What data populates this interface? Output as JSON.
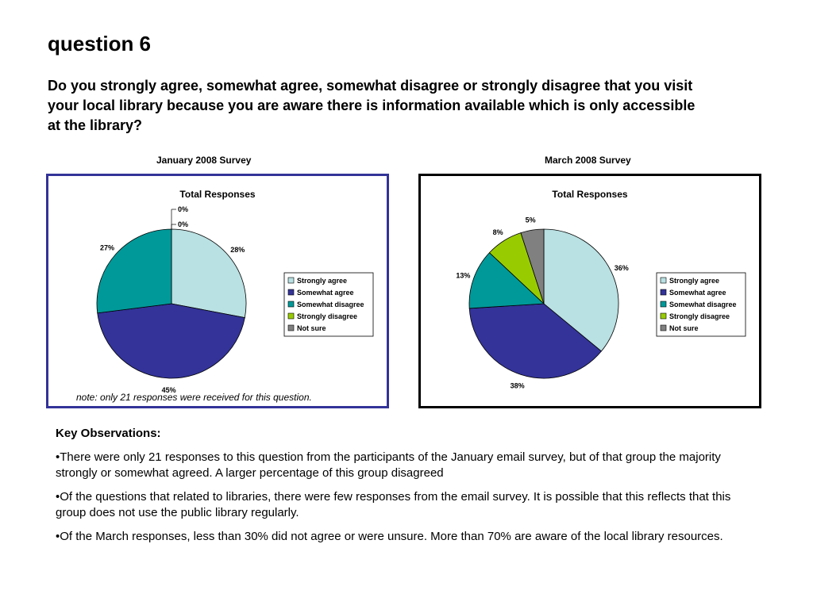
{
  "title": "question 6",
  "question": "Do you strongly agree, somewhat agree, somewhat disagree or strongly disagree that you visit your local library because you are aware there is information available which is only accessible at the library?",
  "note": "note: only 21 responses were received for this question.",
  "observations": {
    "heading": "Key Observations:",
    "items": [
      "•There were only 21 responses to this question from the participants of the January email survey, but of that group the majority strongly or somewhat agreed. A larger percentage of this group disagreed",
      "•Of the questions that related to libraries, there were few responses from the email survey. It is possible that this reflects that this group does not use the public library regularly.",
      "•Of the March responses, less than 30% did not agree or were unsure. More than 70% are aware of the local library resources."
    ]
  },
  "colors": {
    "Strongly agree": "#b9e0e2",
    "Somewhat agree": "#333399",
    "Somewhat disagree": "#009999",
    "Strongly disagree": "#99cc00",
    "Not sure": "#808080"
  },
  "chart_data": [
    {
      "type": "pie",
      "survey_label": "January 2008 Survey",
      "title": "Total Responses",
      "categories": [
        "Strongly agree",
        "Somewhat agree",
        "Somewhat disagree",
        "Strongly disagree",
        "Not sure"
      ],
      "values": [
        28,
        45,
        27,
        0,
        0
      ],
      "labels": [
        "28%",
        "45%",
        "27%",
        "0%",
        "0%"
      ],
      "legend": "right",
      "note": "note: only 21 responses were received for this question."
    },
    {
      "type": "pie",
      "survey_label": "March 2008 Survey",
      "title": "Total Responses",
      "categories": [
        "Strongly agree",
        "Somewhat agree",
        "Somewhat disagree",
        "Strongly disagree",
        "Not sure"
      ],
      "values": [
        36,
        38,
        13,
        8,
        5
      ],
      "labels": [
        "36%",
        "38%",
        "13%",
        "8%",
        "5%"
      ],
      "legend": "right"
    }
  ]
}
